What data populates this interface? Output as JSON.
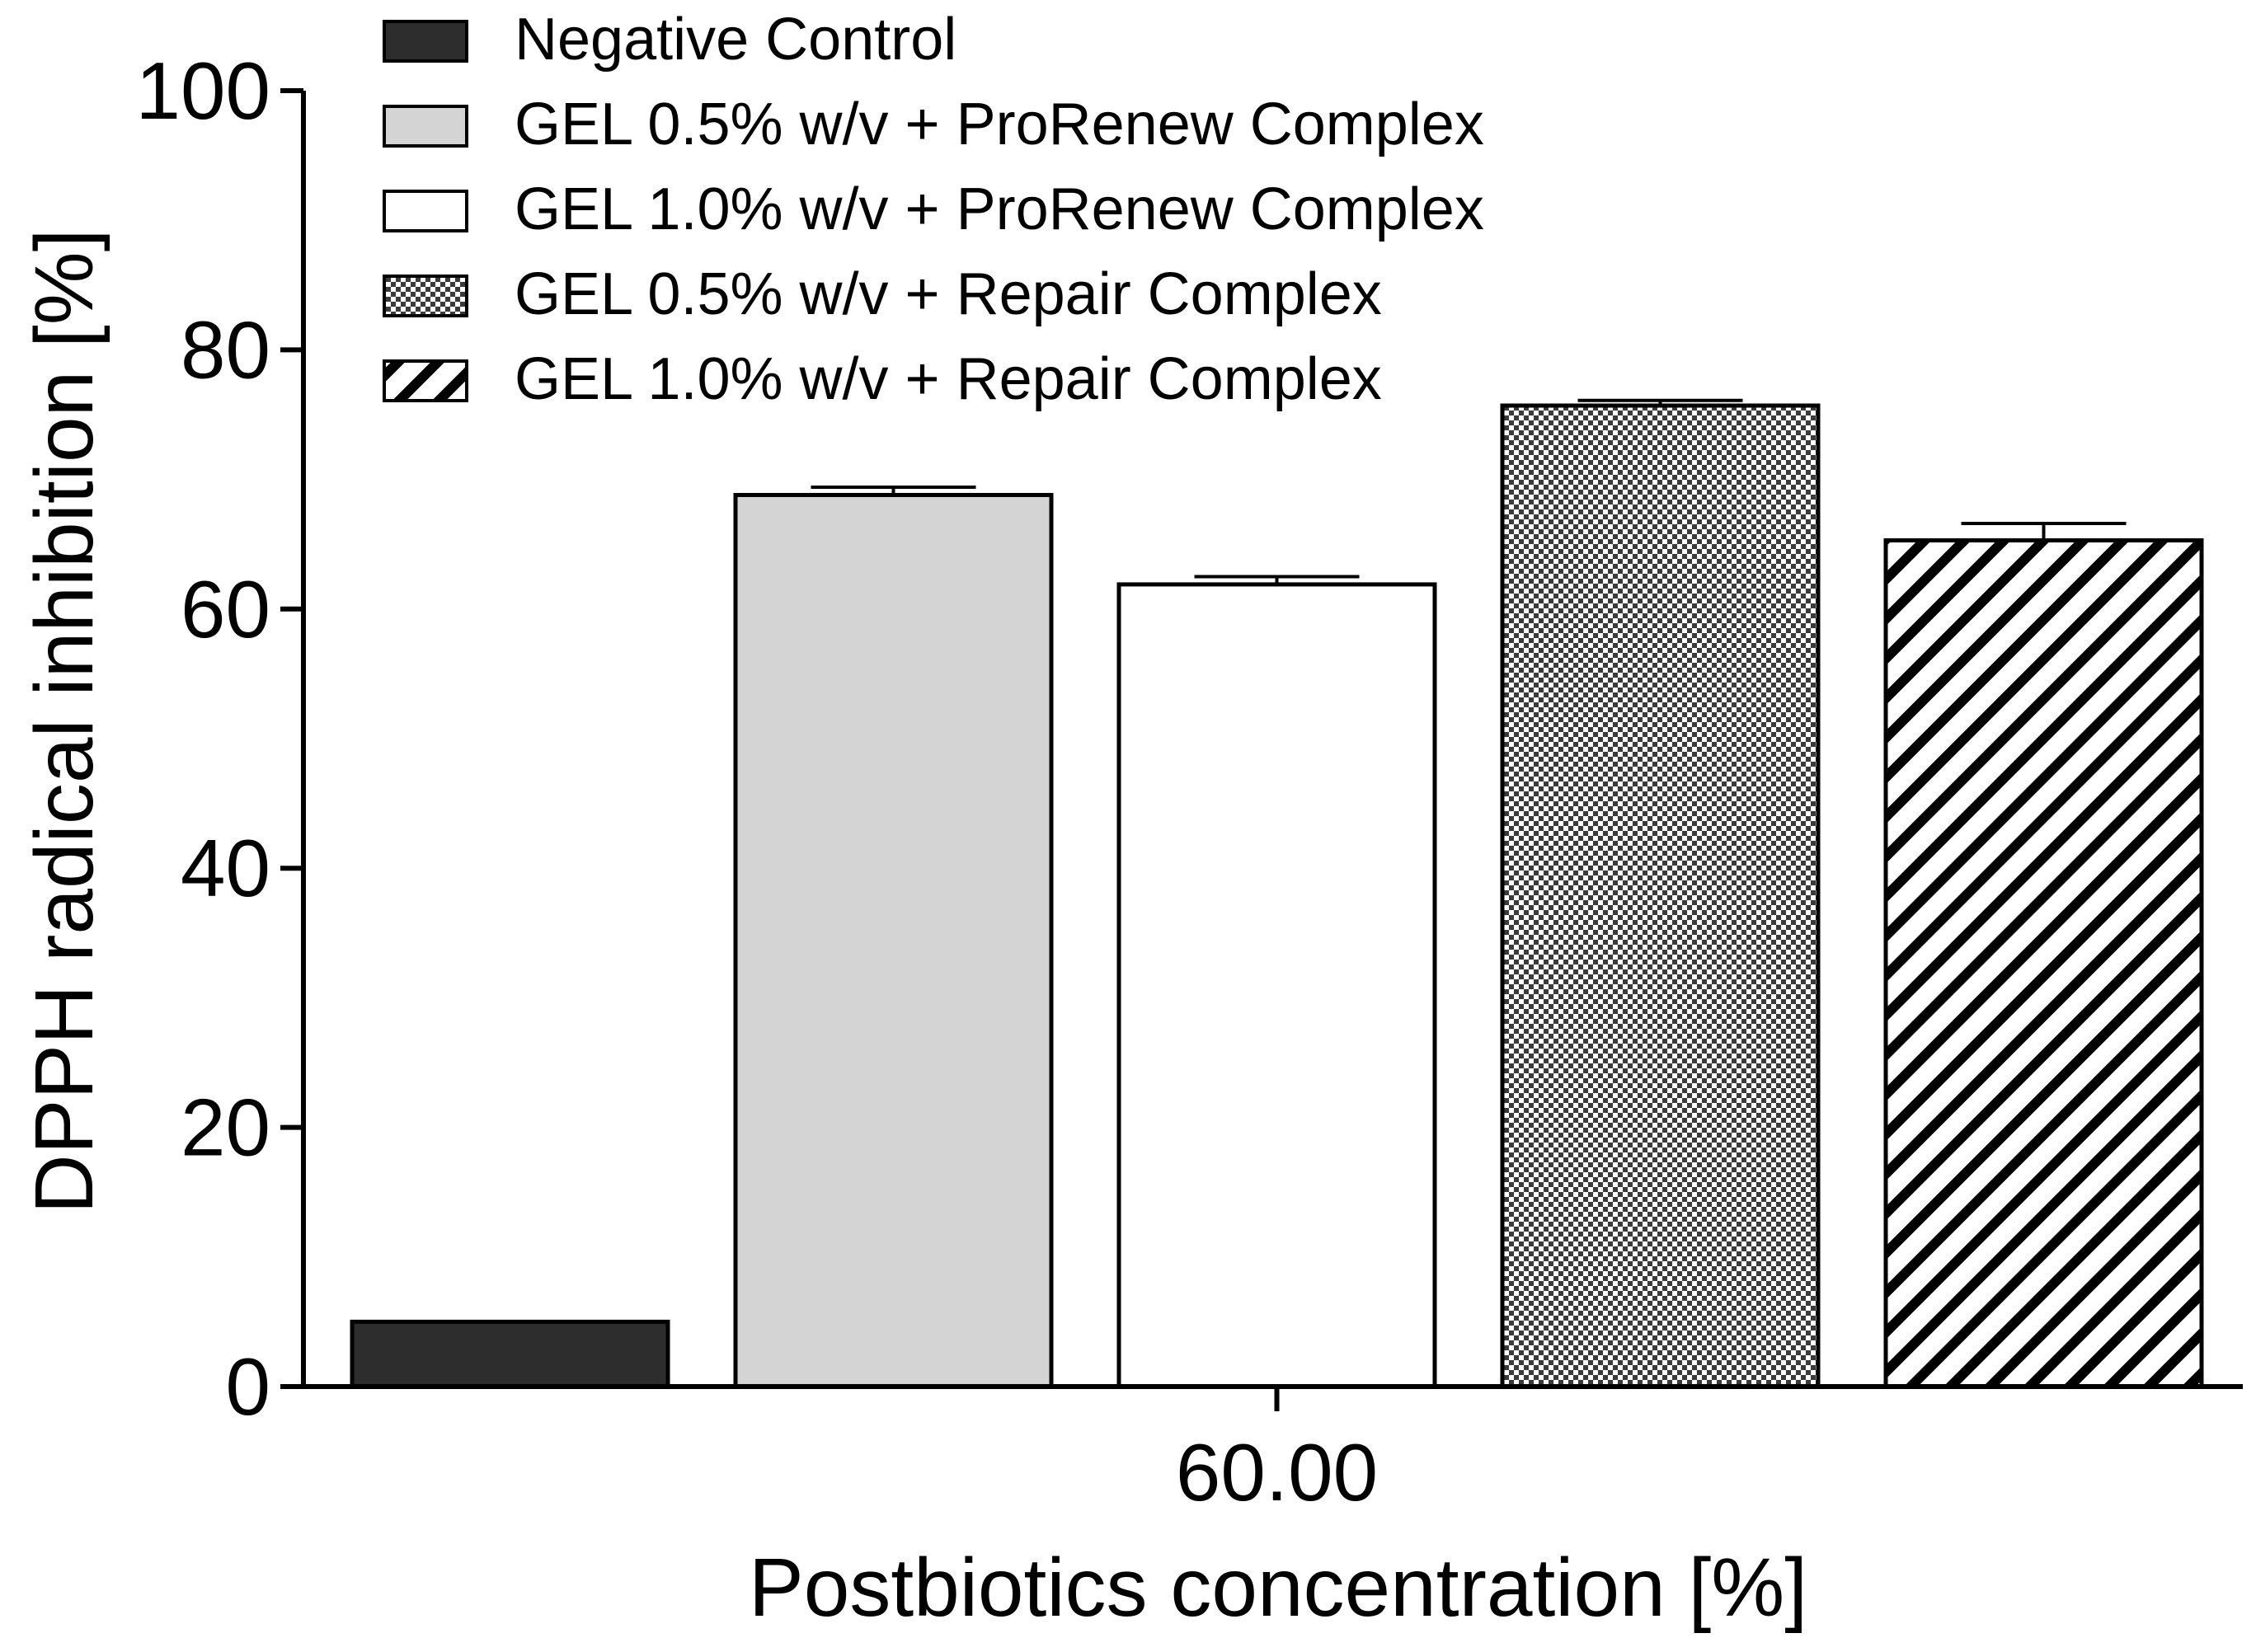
{
  "chart_data": {
    "type": "bar",
    "title": "",
    "xlabel": "Postbiotics concentration [%]",
    "ylabel": "DPPH radical inhibition [%]",
    "ylim": [
      0,
      100
    ],
    "yticks": [
      0,
      20,
      40,
      60,
      80,
      100
    ],
    "categories": [
      "60.00"
    ],
    "grid": false,
    "legend_position": "top-center",
    "series": [
      {
        "name": "Negative Control",
        "values": [
          5.0
        ],
        "errors": [
          0.0
        ],
        "pattern": "solid",
        "color": "#2d2d2d"
      },
      {
        "name": "GEL 0.5% w/v + ProRenew Complex",
        "values": [
          68.8
        ],
        "errors": [
          0.6
        ],
        "pattern": "solid",
        "color": "#d4d4d4"
      },
      {
        "name": "GEL 1.0% w/v + ProRenew Complex",
        "values": [
          61.9
        ],
        "errors": [
          0.6
        ],
        "pattern": "solid",
        "color": "#ffffff"
      },
      {
        "name": "GEL 0.5% w/v + Repair Complex",
        "values": [
          75.7
        ],
        "errors": [
          0.4
        ],
        "pattern": "checker",
        "color": "#555555"
      },
      {
        "name": "GEL 1.0% w/v + Repair Complex",
        "values": [
          65.3
        ],
        "errors": [
          1.3
        ],
        "pattern": "diagonal",
        "color": "#000000"
      }
    ]
  }
}
